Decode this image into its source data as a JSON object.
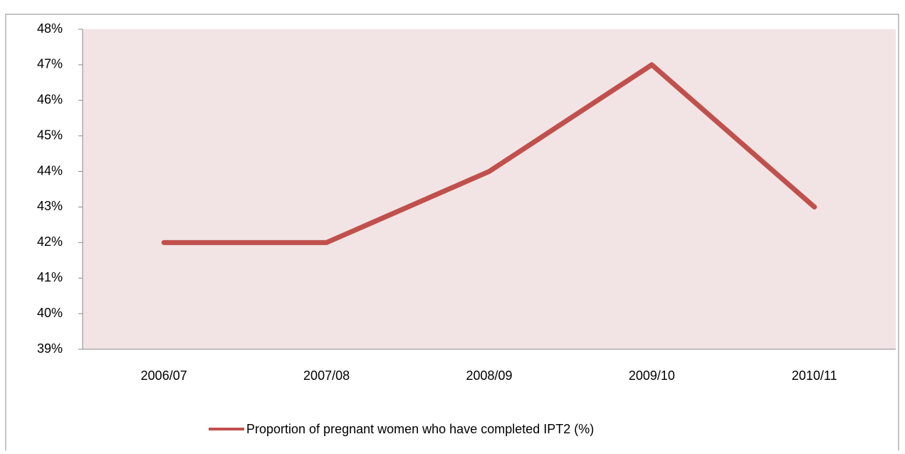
{
  "chart_data": {
    "type": "line",
    "categories": [
      "2006/07",
      "2007/08",
      "2008/09",
      "2009/10",
      "2010/11"
    ],
    "series": [
      {
        "name": "Proportion of pregnant women who have completed IPT2 (%)",
        "color": "#c0504d",
        "values": [
          42,
          42,
          44,
          47,
          43
        ]
      }
    ],
    "ylim": [
      39,
      48
    ],
    "yticks": [
      {
        "value": 39,
        "label": "39%"
      },
      {
        "value": 40,
        "label": "40%"
      },
      {
        "value": 41,
        "label": "41%"
      },
      {
        "value": 42,
        "label": "42%"
      },
      {
        "value": 43,
        "label": "43%"
      },
      {
        "value": 44,
        "label": "44%"
      },
      {
        "value": 45,
        "label": "45%"
      },
      {
        "value": 46,
        "label": "46%"
      },
      {
        "value": 47,
        "label": "47%"
      },
      {
        "value": 48,
        "label": "48%"
      }
    ],
    "grid": false,
    "plot_background": "#f2e4e4",
    "legend": "bottom"
  }
}
